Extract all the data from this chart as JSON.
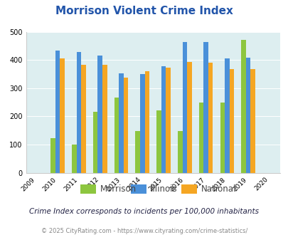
{
  "title": "Morrison Violent Crime Index",
  "years": [
    2009,
    2010,
    2011,
    2012,
    2013,
    2014,
    2015,
    2016,
    2017,
    2018,
    2019,
    2020
  ],
  "morrison": [
    null,
    123,
    101,
    217,
    267,
    148,
    221,
    148,
    248,
    250,
    471,
    null
  ],
  "illinois": [
    null,
    434,
    428,
    415,
    352,
    350,
    378,
    463,
    463,
    405,
    409,
    null
  ],
  "national": [
    null,
    405,
    383,
    383,
    338,
    360,
    373,
    394,
    390,
    368,
    367,
    null
  ],
  "morrison_color": "#8dc63f",
  "illinois_color": "#4a90d9",
  "national_color": "#f5a623",
  "bg_color": "#ddeef0",
  "ylim": [
    0,
    500
  ],
  "yticks": [
    0,
    100,
    200,
    300,
    400,
    500
  ],
  "subtitle": "Crime Index corresponds to incidents per 100,000 inhabitants",
  "footer": "© 2025 CityRating.com - https://www.cityrating.com/crime-statistics/",
  "bar_width": 0.22,
  "title_color": "#2255aa",
  "subtitle_color": "#222244",
  "footer_color": "#888888",
  "legend_label_color": "#444444"
}
